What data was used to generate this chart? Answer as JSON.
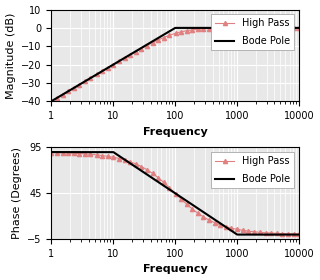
{
  "freq_min": 1,
  "freq_max": 10000,
  "pole_freq": 100,
  "mag_ylim": [
    -40,
    10
  ],
  "mag_yticks": [
    -40,
    -30,
    -20,
    -10,
    0,
    10
  ],
  "phase_ylim": [
    -5,
    95
  ],
  "phase_yticks": [
    -5,
    45,
    95
  ],
  "xlabel": "Frequency",
  "mag_ylabel": "Magnitude (dB)",
  "phase_ylabel": "Phase (Degrees)",
  "legend_hp": "High Pass",
  "legend_bp": "Bode Pole",
  "hp_color": "#e08080",
  "bp_color": "#000000",
  "bg_color": "#e8e8e8",
  "marker": "^",
  "marker_size": 3,
  "linewidth_hp": 0.8,
  "linewidth_bp": 1.5,
  "label_fontsize": 8,
  "tick_fontsize": 7,
  "legend_fontsize": 7,
  "num_markers": 45
}
